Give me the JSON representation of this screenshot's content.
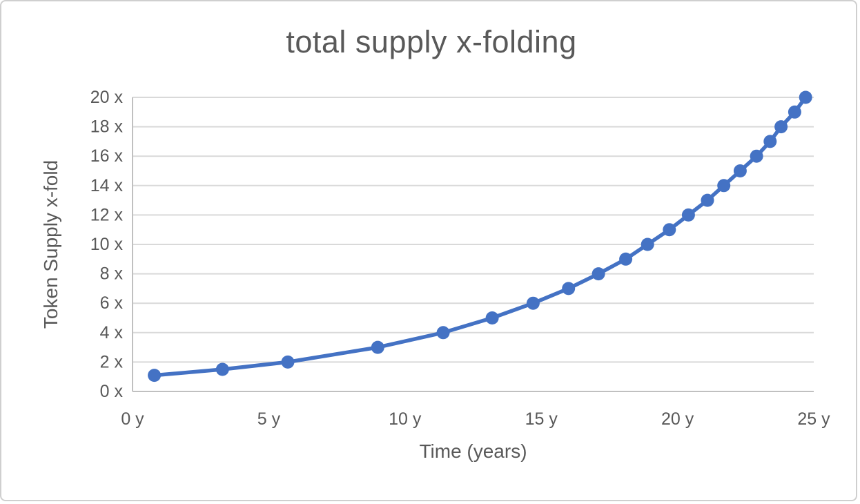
{
  "window": {
    "background": "#ffffff",
    "border_color": "#cfcfcf"
  },
  "chart_data": {
    "type": "line",
    "title": "total supply x-folding",
    "xlabel": "Time (years)",
    "ylabel": "Token Supply x-fold",
    "xlim": [
      0,
      25
    ],
    "ylim": [
      0,
      20
    ],
    "x_tick_values": [
      0,
      5,
      10,
      15,
      20,
      25
    ],
    "x_tick_labels": [
      "0 y",
      "5 y",
      "10 y",
      "15 y",
      "20 y",
      "25 y"
    ],
    "y_tick_values": [
      0,
      2,
      4,
      6,
      8,
      10,
      12,
      14,
      16,
      18,
      20
    ],
    "y_tick_labels": [
      "0 x",
      "2 x",
      "4 x",
      "6 x",
      "8 x",
      "10 x",
      "12 x",
      "14 x",
      "16 x",
      "18 x",
      "20 x"
    ],
    "grid": "horizontal",
    "legend": "none",
    "series": [
      {
        "name": "total supply x-folding",
        "color": "#4472C4",
        "marker": "circle",
        "points": [
          [
            0.8,
            1.1
          ],
          [
            3.3,
            1.5
          ],
          [
            5.7,
            2
          ],
          [
            9.0,
            3
          ],
          [
            11.4,
            4
          ],
          [
            13.2,
            5
          ],
          [
            14.7,
            6
          ],
          [
            16.0,
            7
          ],
          [
            17.1,
            8
          ],
          [
            18.1,
            9
          ],
          [
            18.9,
            10
          ],
          [
            19.7,
            11
          ],
          [
            20.4,
            12
          ],
          [
            21.1,
            13
          ],
          [
            21.7,
            14
          ],
          [
            22.3,
            15
          ],
          [
            22.9,
            16
          ],
          [
            23.4,
            17
          ],
          [
            23.8,
            18
          ],
          [
            24.3,
            19
          ],
          [
            24.7,
            20
          ]
        ]
      }
    ],
    "colors": {
      "text": "#595959",
      "gridline": "#d9d9d9",
      "axis_line": "#c0c0c0",
      "series": "#4472C4"
    }
  }
}
